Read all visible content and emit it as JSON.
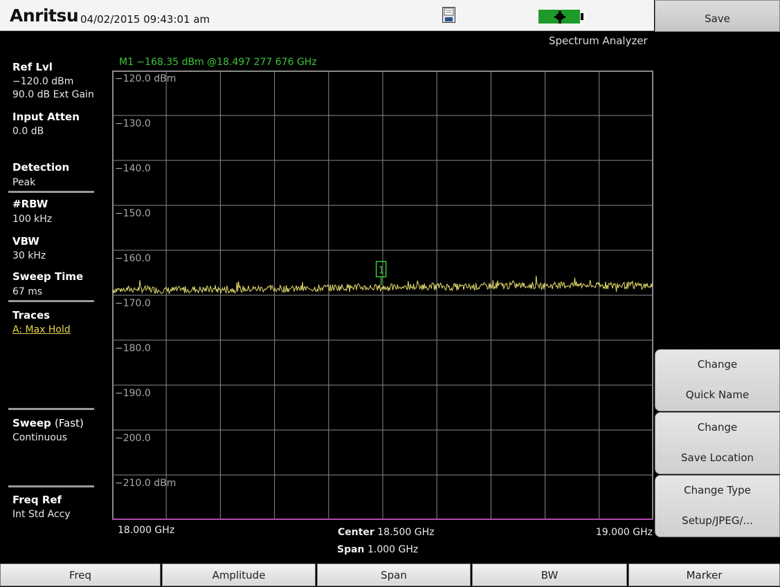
{
  "header": {
    "brand": "Anritsu",
    "datetime": "04/02/2015 09:43:01 am",
    "mode": "Spectrum Analyzer",
    "icons": [
      "save-file-icon",
      "battery-icon"
    ],
    "battery_color": "#1e9a2b"
  },
  "left_panel": {
    "ref_lvl_label": "Ref Lvl",
    "ref_lvl_value": "−120.0 dBm",
    "ext_gain": "90.0 dB Ext Gain",
    "input_atten_label": "Input Atten",
    "input_atten_value": "0.0 dB",
    "detection_label": "Detection",
    "detection_value": "Peak",
    "rbw_label": "#RBW",
    "rbw_value": "100 kHz",
    "vbw_label": "VBW",
    "vbw_value": "30 kHz",
    "sweep_time_label": "Sweep Time",
    "sweep_time_value": "67 ms",
    "traces_label": "Traces",
    "traces_value": "A: Max Hold",
    "sweep_label": "Sweep",
    "sweep_mode": "(Fast)",
    "sweep_value": "Continuous",
    "freq_ref_label": "Freq Ref",
    "freq_ref_value": "Int Std Accy"
  },
  "graph": {
    "marker_readout": "M1 −168.35 dBm @18.497 277 676 GHz",
    "marker_label": "1",
    "y_tick_labels": [
      "−120.0 dBm",
      "−130.0",
      "−140.0",
      "−150.0",
      "−160.0",
      "−170.0",
      "−180.0",
      "−190.0",
      "−200.0",
      "−210.0 dBm"
    ],
    "x_start": "18.000 GHz",
    "x_end": "19.000 GHz",
    "center_label": "Center",
    "center_value": "18.500 GHz",
    "span_label": "Span",
    "span_value": "1.000 GHz",
    "colors": {
      "grid": "#8a8a8a",
      "trace": "#e8e070",
      "marker": "#3cc63c",
      "baseline": "#b04cb0"
    }
  },
  "chart_data": {
    "type": "line",
    "x_unit": "GHz",
    "y_unit": "dBm",
    "xlim": [
      18.0,
      19.0
    ],
    "ylim": [
      -220,
      -120
    ],
    "grid": true,
    "series": [
      {
        "x": [
          18.0,
          18.05,
          18.1,
          18.15,
          18.2,
          18.25,
          18.3,
          18.35,
          18.4,
          18.45,
          18.497,
          18.55,
          18.6,
          18.65,
          18.7,
          18.75,
          18.8,
          18.85,
          18.9,
          18.95,
          19.0
        ],
        "values": [
          -168.8,
          -168.6,
          -168.9,
          -168.7,
          -168.8,
          -168.6,
          -168.5,
          -168.6,
          -168.3,
          -168.2,
          -168.35,
          -168.1,
          -168.0,
          -168.2,
          -167.9,
          -167.8,
          -167.9,
          -167.7,
          -167.9,
          -167.8,
          -167.9
        ]
      }
    ],
    "markers": [
      {
        "label": "1",
        "x": 18.497,
        "y": -168.35
      }
    ]
  },
  "softkeys": {
    "save": "Save",
    "change_quick_name_l1": "Change",
    "change_quick_name_l2": "Quick Name",
    "change_save_location_l1": "Change",
    "change_save_location_l2": "Save Location",
    "change_type_l1": "Change Type",
    "change_type_l2": "Setup/JPEG/..."
  },
  "bottom_menu": {
    "freq": "Freq",
    "amplitude": "Amplitude",
    "span": "Span",
    "bw": "BW",
    "marker": "Marker"
  }
}
